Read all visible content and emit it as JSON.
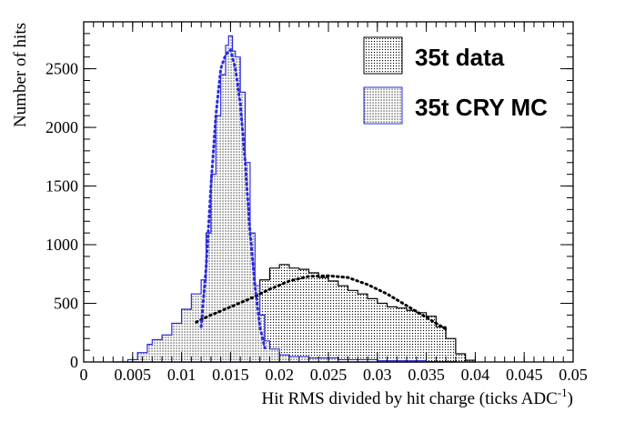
{
  "chart_data": {
    "type": "histogram",
    "xlabel": "Hit RMS divided by hit charge (ticks ADC",
    "xlabel_superscript": "-1",
    "xlabel_suffix": ")",
    "ylabel": "Number of hits",
    "xlim": [
      0,
      0.05
    ],
    "ylim": [
      0,
      2900
    ],
    "x_ticks": [
      "0",
      "0.005",
      "0.01",
      "0.015",
      "0.02",
      "0.025",
      "0.03",
      "0.035",
      "0.04",
      "0.045",
      "0.05"
    ],
    "x_tick_values": [
      0,
      0.005,
      0.01,
      0.015,
      0.02,
      0.025,
      0.03,
      0.035,
      0.04,
      0.045,
      0.05
    ],
    "y_ticks": [
      "0",
      "500",
      "1000",
      "1500",
      "2000",
      "2500"
    ],
    "y_tick_values": [
      0,
      500,
      1000,
      1500,
      2000,
      2500
    ],
    "grid": false,
    "legend_position": "top-right",
    "colors": {
      "data": "#000000",
      "mc": "#2a2ae0",
      "axis": "#000000"
    },
    "series": [
      {
        "name": "35t data",
        "kind": "histogram",
        "points": [
          [
            0.004,
            0
          ],
          [
            0.006,
            10
          ],
          [
            0.0075,
            40
          ],
          [
            0.009,
            90
          ],
          [
            0.01,
            130
          ],
          [
            0.011,
            180
          ],
          [
            0.012,
            260
          ],
          [
            0.013,
            320
          ],
          [
            0.014,
            380
          ],
          [
            0.015,
            440
          ],
          [
            0.016,
            520
          ],
          [
            0.017,
            590
          ],
          [
            0.018,
            700
          ],
          [
            0.019,
            800
          ],
          [
            0.02,
            830
          ],
          [
            0.021,
            800
          ],
          [
            0.022,
            790
          ],
          [
            0.023,
            760
          ],
          [
            0.024,
            720
          ],
          [
            0.025,
            690
          ],
          [
            0.026,
            650
          ],
          [
            0.027,
            610
          ],
          [
            0.028,
            580
          ],
          [
            0.029,
            540
          ],
          [
            0.03,
            500
          ],
          [
            0.031,
            470
          ],
          [
            0.032,
            460
          ],
          [
            0.033,
            440
          ],
          [
            0.034,
            420
          ],
          [
            0.035,
            390
          ],
          [
            0.036,
            300
          ],
          [
            0.037,
            200
          ],
          [
            0.038,
            70
          ],
          [
            0.039,
            15
          ],
          [
            0.04,
            0
          ]
        ]
      },
      {
        "name": "35t CRY MC",
        "kind": "histogram",
        "points": [
          [
            0.003,
            0
          ],
          [
            0.0045,
            20
          ],
          [
            0.0055,
            80
          ],
          [
            0.0065,
            150
          ],
          [
            0.007,
            190
          ],
          [
            0.008,
            230
          ],
          [
            0.009,
            330
          ],
          [
            0.01,
            450
          ],
          [
            0.011,
            580
          ],
          [
            0.012,
            700
          ],
          [
            0.0125,
            1100
          ],
          [
            0.013,
            1600
          ],
          [
            0.0135,
            2100
          ],
          [
            0.014,
            2450
          ],
          [
            0.0145,
            2700
          ],
          [
            0.0148,
            2780
          ],
          [
            0.0152,
            2650
          ],
          [
            0.0155,
            2600
          ],
          [
            0.016,
            2300
          ],
          [
            0.0165,
            1700
          ],
          [
            0.017,
            1100
          ],
          [
            0.0175,
            650
          ],
          [
            0.018,
            400
          ],
          [
            0.0185,
            180
          ],
          [
            0.019,
            110
          ],
          [
            0.02,
            60
          ],
          [
            0.021,
            45
          ],
          [
            0.023,
            35
          ],
          [
            0.026,
            20
          ],
          [
            0.03,
            10
          ],
          [
            0.035,
            3
          ],
          [
            0.038,
            0
          ]
        ]
      },
      {
        "name": "",
        "kind": "fit",
        "style": "dotted",
        "points": [
          [
            0.0115,
            340
          ],
          [
            0.013,
            400
          ],
          [
            0.015,
            470
          ],
          [
            0.017,
            540
          ],
          [
            0.019,
            620
          ],
          [
            0.021,
            690
          ],
          [
            0.023,
            730
          ],
          [
            0.025,
            735
          ],
          [
            0.027,
            720
          ],
          [
            0.029,
            660
          ],
          [
            0.031,
            580
          ],
          [
            0.033,
            480
          ],
          [
            0.035,
            380
          ],
          [
            0.037,
            280
          ]
        ]
      },
      {
        "name": "",
        "kind": "fit",
        "style": "dotted",
        "points": [
          [
            0.012,
            300
          ],
          [
            0.0125,
            800
          ],
          [
            0.013,
            1500
          ],
          [
            0.0135,
            2100
          ],
          [
            0.014,
            2500
          ],
          [
            0.0145,
            2620
          ],
          [
            0.015,
            2660
          ],
          [
            0.0155,
            2500
          ],
          [
            0.016,
            2200
          ],
          [
            0.0165,
            1700
          ],
          [
            0.017,
            1100
          ],
          [
            0.0175,
            650
          ],
          [
            0.018,
            300
          ],
          [
            0.0185,
            120
          ]
        ]
      }
    ]
  }
}
